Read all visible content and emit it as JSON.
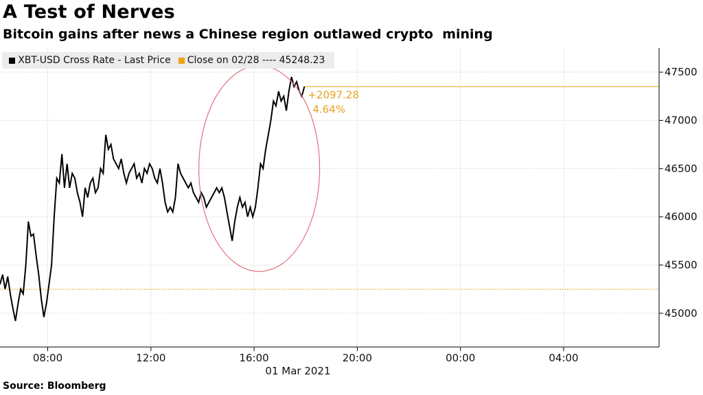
{
  "header": {
    "title": "A Test of Nerves",
    "subtitle": "Bitcoin gains after news a Chinese region outlawed crypto  mining"
  },
  "legend": {
    "series_label": "XBT-USD Cross Rate - Last Price",
    "close_label": "Close on 02/28 ---- 45248.23"
  },
  "footer": {
    "source": "Source: Bloomberg"
  },
  "colors": {
    "series": "#000000",
    "close": "#f0a30a",
    "annotation": "#e8a020",
    "circle": "#e0707a",
    "grid": "#d9d9d9"
  },
  "chart_data": {
    "type": "line",
    "title": "A Test of Nerves",
    "subtitle": "Bitcoin gains after news a Chinese region outlawed crypto  mining",
    "x_tick_labels": [
      "08:00",
      "12:00",
      "16:00",
      "20:00",
      "00:00",
      "04:00"
    ],
    "x_date_label": "01 Mar 2021",
    "x_range_hours": [
      6.15,
      31.7
    ],
    "y_ticks": [
      45000,
      45500,
      46000,
      46500,
      47000,
      47500
    ],
    "ylim": [
      44650,
      47750
    ],
    "y_axis_side": "right",
    "grid": true,
    "legend_position": "top-left",
    "reference_line": {
      "name": "Close on 02/28",
      "value": 45248.23
    },
    "annotation": {
      "change": "+2097.28",
      "percent": "4.64%"
    },
    "series": [
      {
        "name": "XBT-USD Cross Rate - Last Price",
        "points": [
          [
            6.15,
            45300
          ],
          [
            6.25,
            45400
          ],
          [
            6.35,
            45250
          ],
          [
            6.45,
            45380
          ],
          [
            6.55,
            45200
          ],
          [
            6.65,
            45050
          ],
          [
            6.75,
            44920
          ],
          [
            6.85,
            45100
          ],
          [
            6.95,
            45250
          ],
          [
            7.05,
            45200
          ],
          [
            7.15,
            45500
          ],
          [
            7.25,
            45950
          ],
          [
            7.35,
            45800
          ],
          [
            7.45,
            45820
          ],
          [
            7.55,
            45600
          ],
          [
            7.65,
            45400
          ],
          [
            7.75,
            45150
          ],
          [
            7.85,
            44960
          ],
          [
            7.95,
            45100
          ],
          [
            8.05,
            45300
          ],
          [
            8.15,
            45500
          ],
          [
            8.25,
            46000
          ],
          [
            8.35,
            46400
          ],
          [
            8.45,
            46350
          ],
          [
            8.55,
            46650
          ],
          [
            8.65,
            46300
          ],
          [
            8.75,
            46550
          ],
          [
            8.85,
            46300
          ],
          [
            8.95,
            46450
          ],
          [
            9.05,
            46400
          ],
          [
            9.15,
            46250
          ],
          [
            9.25,
            46150
          ],
          [
            9.35,
            46000
          ],
          [
            9.45,
            46300
          ],
          [
            9.55,
            46200
          ],
          [
            9.65,
            46350
          ],
          [
            9.75,
            46400
          ],
          [
            9.85,
            46250
          ],
          [
            9.95,
            46300
          ],
          [
            10.05,
            46500
          ],
          [
            10.15,
            46450
          ],
          [
            10.25,
            46850
          ],
          [
            10.35,
            46700
          ],
          [
            10.45,
            46750
          ],
          [
            10.55,
            46600
          ],
          [
            10.65,
            46550
          ],
          [
            10.75,
            46500
          ],
          [
            10.85,
            46600
          ],
          [
            10.95,
            46450
          ],
          [
            11.05,
            46350
          ],
          [
            11.15,
            46450
          ],
          [
            11.25,
            46500
          ],
          [
            11.35,
            46550
          ],
          [
            11.45,
            46400
          ],
          [
            11.55,
            46450
          ],
          [
            11.65,
            46350
          ],
          [
            11.75,
            46500
          ],
          [
            11.85,
            46450
          ],
          [
            11.95,
            46550
          ],
          [
            12.05,
            46500
          ],
          [
            12.15,
            46400
          ],
          [
            12.25,
            46350
          ],
          [
            12.35,
            46500
          ],
          [
            12.45,
            46350
          ],
          [
            12.55,
            46150
          ],
          [
            12.65,
            46050
          ],
          [
            12.75,
            46100
          ],
          [
            12.85,
            46050
          ],
          [
            12.95,
            46200
          ],
          [
            13.05,
            46550
          ],
          [
            13.15,
            46450
          ],
          [
            13.25,
            46400
          ],
          [
            13.35,
            46350
          ],
          [
            13.45,
            46300
          ],
          [
            13.55,
            46350
          ],
          [
            13.65,
            46250
          ],
          [
            13.75,
            46200
          ],
          [
            13.85,
            46150
          ],
          [
            13.95,
            46250
          ],
          [
            14.05,
            46200
          ],
          [
            14.15,
            46100
          ],
          [
            14.25,
            46150
          ],
          [
            14.35,
            46200
          ],
          [
            14.45,
            46250
          ],
          [
            14.55,
            46300
          ],
          [
            14.65,
            46250
          ],
          [
            14.75,
            46300
          ],
          [
            14.85,
            46200
          ],
          [
            14.95,
            46050
          ],
          [
            15.05,
            45900
          ],
          [
            15.15,
            45750
          ],
          [
            15.25,
            45950
          ],
          [
            15.35,
            46100
          ],
          [
            15.45,
            46200
          ],
          [
            15.55,
            46100
          ],
          [
            15.65,
            46150
          ],
          [
            15.75,
            46000
          ],
          [
            15.85,
            46100
          ],
          [
            15.95,
            46000
          ],
          [
            16.05,
            46100
          ],
          [
            16.15,
            46300
          ],
          [
            16.25,
            46550
          ],
          [
            16.35,
            46500
          ],
          [
            16.45,
            46700
          ],
          [
            16.55,
            46850
          ],
          [
            16.65,
            47000
          ],
          [
            16.75,
            47200
          ],
          [
            16.85,
            47150
          ],
          [
            16.95,
            47300
          ],
          [
            17.05,
            47200
          ],
          [
            17.15,
            47250
          ],
          [
            17.25,
            47100
          ],
          [
            17.35,
            47300
          ],
          [
            17.45,
            47450
          ],
          [
            17.55,
            47350
          ],
          [
            17.65,
            47400
          ],
          [
            17.75,
            47300
          ],
          [
            17.85,
            47250
          ],
          [
            17.95,
            47350
          ]
        ]
      }
    ]
  }
}
